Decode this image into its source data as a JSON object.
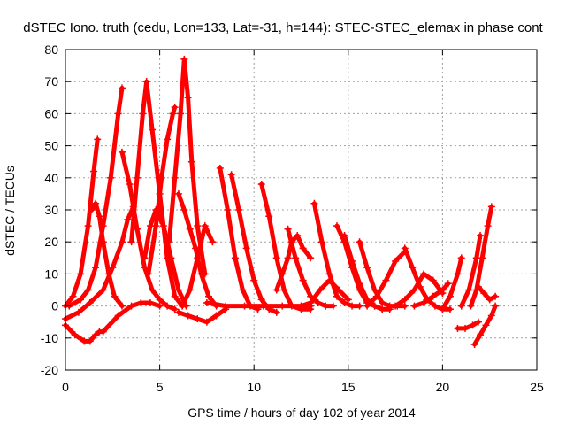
{
  "chart_data": {
    "type": "line",
    "title": "dSTEC Iono. truth (cedu, Lon=133, Lat=-31, h=144): STEC-STEC_elemax in phase cont",
    "xlabel": "GPS time / hours of day 102 of year 2014",
    "ylabel": "dSTEC  / TECUs",
    "xlim": [
      0,
      25
    ],
    "ylim": [
      -20,
      80
    ],
    "xticks": [
      0,
      5,
      10,
      15,
      20,
      25
    ],
    "yticks": [
      -20,
      -10,
      0,
      10,
      20,
      30,
      40,
      50,
      60,
      70,
      80
    ],
    "grid": true,
    "marker": "plus",
    "color": "#ff0000",
    "series": [
      {
        "x": [
          0.0,
          0.4,
          0.8,
          1.2,
          1.5,
          1.7
        ],
        "y": [
          0,
          3,
          10,
          25,
          42,
          52
        ]
      },
      {
        "x": [
          0.0,
          0.5,
          1.0,
          1.3,
          1.6,
          1.8,
          2.0
        ],
        "y": [
          -6,
          -9,
          -11,
          -11,
          -9,
          -8,
          -8
        ]
      },
      {
        "x": [
          0.2,
          0.8,
          1.2,
          1.6,
          2.0,
          2.4,
          2.8,
          3.0
        ],
        "y": [
          0,
          2,
          5,
          12,
          25,
          40,
          60,
          68
        ]
      },
      {
        "x": [
          1.4,
          1.6,
          1.8,
          2.0,
          2.3,
          2.6,
          3.0
        ],
        "y": [
          30,
          32,
          28,
          20,
          10,
          3,
          0
        ]
      },
      {
        "x": [
          0.0,
          0.7,
          1.3,
          2.0,
          2.5,
          3.0,
          3.3,
          3.6
        ],
        "y": [
          -4,
          -2,
          1,
          5,
          12,
          20,
          27,
          31
        ]
      },
      {
        "x": [
          3.0,
          3.4,
          3.8,
          4.2,
          4.6,
          5.0,
          5.4,
          5.8
        ],
        "y": [
          48,
          38,
          24,
          12,
          5,
          2,
          0,
          -1
        ]
      },
      {
        "x": [
          2.0,
          2.8,
          3.5,
          4.0,
          4.5,
          5.0
        ],
        "y": [
          -8,
          -3,
          0,
          1,
          1,
          0
        ]
      },
      {
        "x": [
          3.5,
          3.8,
          4.1,
          4.3
        ],
        "y": [
          20,
          40,
          60,
          70
        ]
      },
      {
        "x": [
          4.3,
          4.6,
          5.0,
          5.4,
          5.8,
          6.2
        ],
        "y": [
          70,
          55,
          35,
          15,
          3,
          0
        ]
      },
      {
        "x": [
          4.4,
          4.8,
          5.1,
          5.4,
          5.7,
          5.8
        ],
        "y": [
          10,
          25,
          40,
          52,
          60,
          62
        ]
      },
      {
        "x": [
          4.2,
          4.5,
          4.8,
          5.2,
          5.6,
          6.0,
          6.4
        ],
        "y": [
          15,
          25,
          30,
          25,
          15,
          5,
          0
        ]
      },
      {
        "x": [
          5.5,
          5.8,
          6.1,
          6.3,
          6.5,
          6.7,
          7.0,
          7.4
        ],
        "y": [
          20,
          40,
          60,
          77,
          65,
          45,
          25,
          10
        ]
      },
      {
        "x": [
          6.0,
          6.3,
          6.6,
          6.9,
          7.2,
          7.6,
          8.0
        ],
        "y": [
          35,
          30,
          24,
          18,
          10,
          3,
          0
        ]
      },
      {
        "x": [
          6.2,
          6.6,
          7.0,
          7.4,
          7.8
        ],
        "y": [
          0,
          5,
          15,
          25,
          20
        ]
      },
      {
        "x": [
          6.0,
          6.5,
          7.0,
          7.5,
          8.0,
          8.5
        ],
        "y": [
          -2,
          -3,
          -4,
          -5,
          -3,
          -1
        ]
      },
      {
        "x": [
          8.2,
          8.6,
          9.0,
          9.4,
          9.8,
          10.2
        ],
        "y": [
          43,
          30,
          15,
          5,
          0,
          -1
        ]
      },
      {
        "x": [
          8.8,
          9.2,
          9.6,
          10.0,
          10.4,
          10.8,
          11.2
        ],
        "y": [
          41,
          30,
          18,
          8,
          2,
          -1,
          -2
        ]
      },
      {
        "x": [
          7.5,
          8.5,
          9.5,
          10.5,
          11.5,
          12.5,
          13.0
        ],
        "y": [
          1,
          0,
          0,
          0,
          0,
          0,
          0
        ]
      },
      {
        "x": [
          10.4,
          10.8,
          11.2,
          11.6,
          12.0,
          12.5,
          13.0
        ],
        "y": [
          38,
          28,
          15,
          5,
          0,
          -1,
          -1
        ]
      },
      {
        "x": [
          11.2,
          11.5,
          11.8,
          12.0,
          12.3,
          12.6,
          13.0
        ],
        "y": [
          5,
          10,
          15,
          20,
          22,
          18,
          15
        ]
      },
      {
        "x": [
          11.8,
          12.2,
          12.6,
          13.0,
          13.4,
          13.8,
          14.2
        ],
        "y": [
          24,
          15,
          8,
          3,
          1,
          0,
          0
        ]
      },
      {
        "x": [
          12.5,
          13.0,
          13.5,
          14.0,
          14.5,
          15.0
        ],
        "y": [
          0,
          1,
          5,
          8,
          5,
          2
        ]
      },
      {
        "x": [
          13.2,
          13.6,
          14.0,
          14.4,
          14.8,
          15.2,
          15.6
        ],
        "y": [
          32,
          20,
          10,
          3,
          1,
          0,
          0
        ]
      },
      {
        "x": [
          14.4,
          14.8,
          15.2,
          15.6,
          16.0,
          16.4,
          16.8
        ],
        "y": [
          25,
          20,
          12,
          5,
          1,
          0,
          -1
        ]
      },
      {
        "x": [
          14.8,
          15.2,
          15.6,
          16.0,
          16.4,
          16.8,
          17.2
        ],
        "y": [
          22,
          14,
          7,
          2,
          0,
          -1,
          -1
        ]
      },
      {
        "x": [
          15.6,
          16.0,
          16.4,
          16.8,
          17.2,
          17.6,
          18.0
        ],
        "y": [
          20,
          12,
          5,
          1,
          0,
          0,
          0
        ]
      },
      {
        "x": [
          16.0,
          16.5,
          17.0,
          17.5,
          18.0
        ],
        "y": [
          0,
          3,
          8,
          14,
          17
        ]
      },
      {
        "x": [
          18.0,
          18.4,
          18.8,
          19.2,
          19.6,
          20.0,
          20.4
        ],
        "y": [
          18,
          12,
          6,
          2,
          0,
          -1,
          -1
        ]
      },
      {
        "x": [
          17.5,
          18.0,
          18.5,
          19.0,
          19.5,
          20.0
        ],
        "y": [
          0,
          2,
          5,
          10,
          8,
          4
        ]
      },
      {
        "x": [
          18.5,
          19.0,
          19.5,
          20.0,
          20.3
        ],
        "y": [
          0,
          1,
          3,
          5,
          7
        ]
      },
      {
        "x": [
          20.0,
          20.4,
          20.8,
          21.0
        ],
        "y": [
          -1,
          3,
          10,
          15
        ]
      },
      {
        "x": [
          21.0,
          21.4,
          21.8,
          22.0
        ],
        "y": [
          0,
          5,
          15,
          22
        ]
      },
      {
        "x": [
          21.5,
          21.8,
          22.1,
          22.4,
          22.6
        ],
        "y": [
          0,
          5,
          15,
          25,
          31
        ]
      },
      {
        "x": [
          20.8,
          21.2,
          21.6,
          21.9
        ],
        "y": [
          -7,
          -7,
          -6,
          -5
        ]
      },
      {
        "x": [
          21.7,
          22.0,
          22.3,
          22.6,
          22.8
        ],
        "y": [
          -12,
          -9,
          -6,
          -3,
          0
        ]
      },
      {
        "x": [
          21.9,
          22.2,
          22.5,
          22.8
        ],
        "y": [
          6,
          4,
          2,
          3
        ]
      }
    ]
  }
}
